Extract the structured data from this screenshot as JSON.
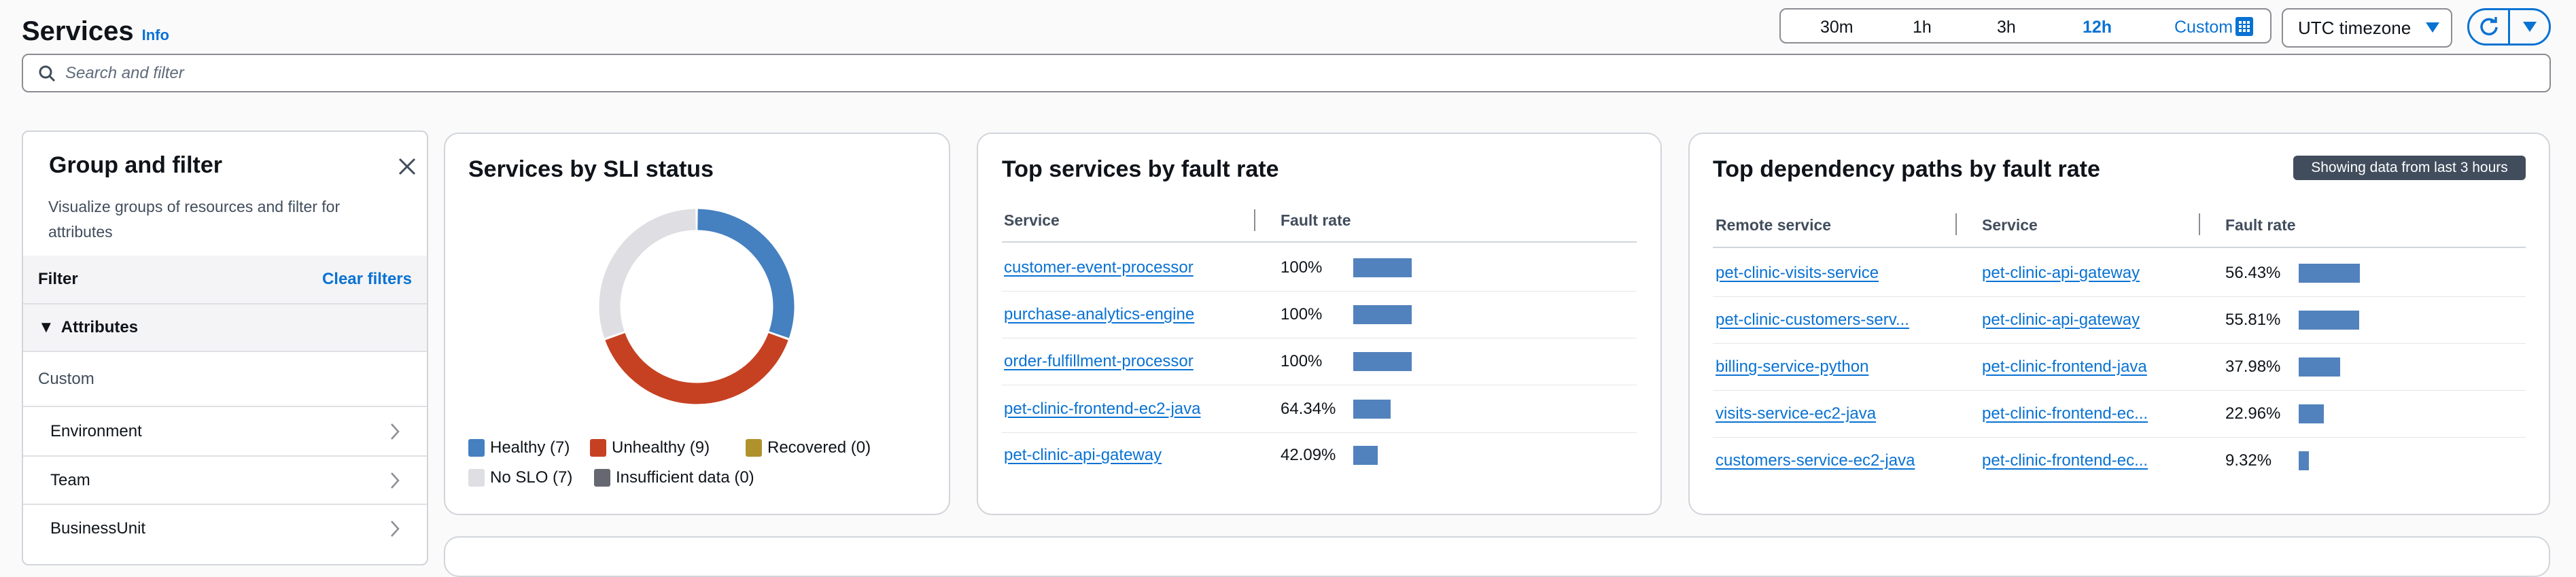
{
  "header": {
    "title": "Services",
    "info": "Info"
  },
  "search": {
    "placeholder": "Search and filter"
  },
  "time_range": {
    "options": [
      "30m",
      "1h",
      "3h",
      "12h",
      "Custom"
    ],
    "selected": "12h"
  },
  "timezone": {
    "value": "UTC timezone"
  },
  "group_filter": {
    "title": "Group and filter",
    "description": "Visualize groups of resources and filter for attributes",
    "filter_label": "Filter",
    "clear_filters": "Clear filters",
    "attributes_label": "Attributes",
    "custom_label": "Custom",
    "items": [
      "Environment",
      "Team",
      "BusinessUnit"
    ]
  },
  "sli_status": {
    "title": "Services by SLI status",
    "legend": [
      {
        "label": "Healthy (7)",
        "color": "#4580c0"
      },
      {
        "label": "Unhealthy (9)",
        "color": "#c64122"
      },
      {
        "label": "Recovered (0)",
        "color": "#b0922d"
      },
      {
        "label": "No SLO (7)",
        "color": "#dedee3"
      },
      {
        "label": "Insufficient data (0)",
        "color": "#656871"
      }
    ]
  },
  "chart_data": [
    {
      "type": "pie",
      "title": "Services by SLI status",
      "categories": [
        "Healthy",
        "Unhealthy",
        "Recovered",
        "No SLO",
        "Insufficient data"
      ],
      "values": [
        7,
        9,
        0,
        7,
        0
      ],
      "colors": [
        "#4580c0",
        "#c64122",
        "#b0922d",
        "#dedee3",
        "#656871"
      ],
      "donut": true
    },
    {
      "type": "bar",
      "title": "Top services by fault rate",
      "categories": [
        "customer-event-processor",
        "purchase-analytics-engine",
        "order-fulfillment-processor",
        "pet-clinic-frontend-ec2-java",
        "pet-clinic-api-gateway"
      ],
      "values": [
        100,
        100,
        100,
        64.34,
        42.09
      ],
      "unit": "%"
    },
    {
      "type": "bar",
      "title": "Top dependency paths by fault rate",
      "categories": [
        "pet-clinic-visits-service",
        "pet-clinic-customers-serv...",
        "billing-service-python",
        "visits-service-ec2-java",
        "customers-service-ec2-java"
      ],
      "values": [
        56.43,
        55.81,
        37.98,
        22.96,
        9.32
      ],
      "unit": "%"
    }
  ],
  "top_services": {
    "title": "Top services by fault rate",
    "columns": [
      "Service",
      "Fault rate"
    ],
    "rows": [
      {
        "service": "customer-event-processor",
        "rate": "100%",
        "value": 100
      },
      {
        "service": "purchase-analytics-engine",
        "rate": "100%",
        "value": 100
      },
      {
        "service": "order-fulfillment-processor",
        "rate": "100%",
        "value": 100
      },
      {
        "service": "pet-clinic-frontend-ec2-java",
        "rate": "64.34%",
        "value": 64.34
      },
      {
        "service": "pet-clinic-api-gateway",
        "rate": "42.09%",
        "value": 42.09
      }
    ]
  },
  "top_deps": {
    "title": "Top dependency paths by fault rate",
    "badge": "Showing data from last 3 hours",
    "columns": [
      "Remote service",
      "Service",
      "Fault rate"
    ],
    "rows": [
      {
        "remote": "pet-clinic-visits-service",
        "service": "pet-clinic-api-gateway",
        "rate": "56.43%",
        "value": 56.43
      },
      {
        "remote": "pet-clinic-customers-serv...",
        "service": "pet-clinic-api-gateway",
        "rate": "55.81%",
        "value": 55.81
      },
      {
        "remote": "billing-service-python",
        "service": "pet-clinic-frontend-java",
        "rate": "37.98%",
        "value": 37.98
      },
      {
        "remote": "visits-service-ec2-java",
        "service": "pet-clinic-frontend-ec...",
        "rate": "22.96%",
        "value": 22.96
      },
      {
        "remote": "customers-service-ec2-java",
        "service": "pet-clinic-frontend-ec...",
        "rate": "9.32%",
        "value": 9.32
      }
    ]
  }
}
